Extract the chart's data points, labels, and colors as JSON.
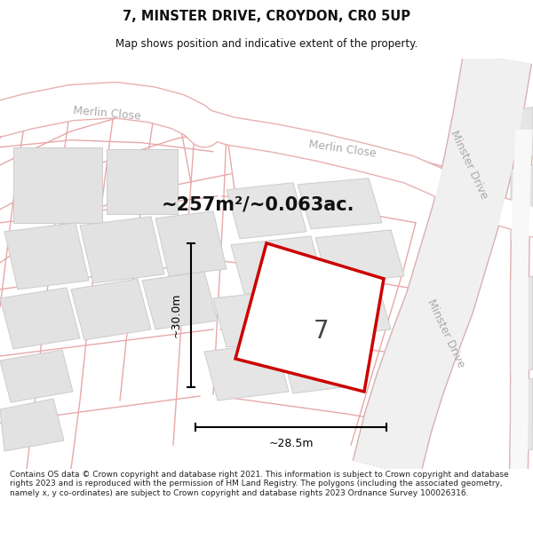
{
  "title_line1": "7, MINSTER DRIVE, CROYDON, CR0 5UP",
  "title_line2": "Map shows position and indicative extent of the property.",
  "area_text": "~257m²/~0.063ac.",
  "dim_vertical": "~30.0m",
  "dim_horizontal": "~28.5m",
  "property_label": "7",
  "footer_text": "Contains OS data © Crown copyright and database right 2021. This information is subject to Crown copyright and database rights 2023 and is reproduced with the permission of HM Land Registry. The polygons (including the associated geometry, namely x, y co-ordinates) are subject to Crown copyright and database rights 2023 Ordnance Survey 100026316.",
  "background_color": "#ffffff",
  "map_bg": "#f2f2f2",
  "road_fill": "#ffffff",
  "road_edge": "#d09090",
  "building_fill": "#e0e0e0",
  "building_edge": "#c8c8c8",
  "property_fill": "#ffffff",
  "property_edge": "#cc0000",
  "dim_color": "#000000",
  "label_gray": "#aaaaaa",
  "pink_line": "#e8a0a0"
}
